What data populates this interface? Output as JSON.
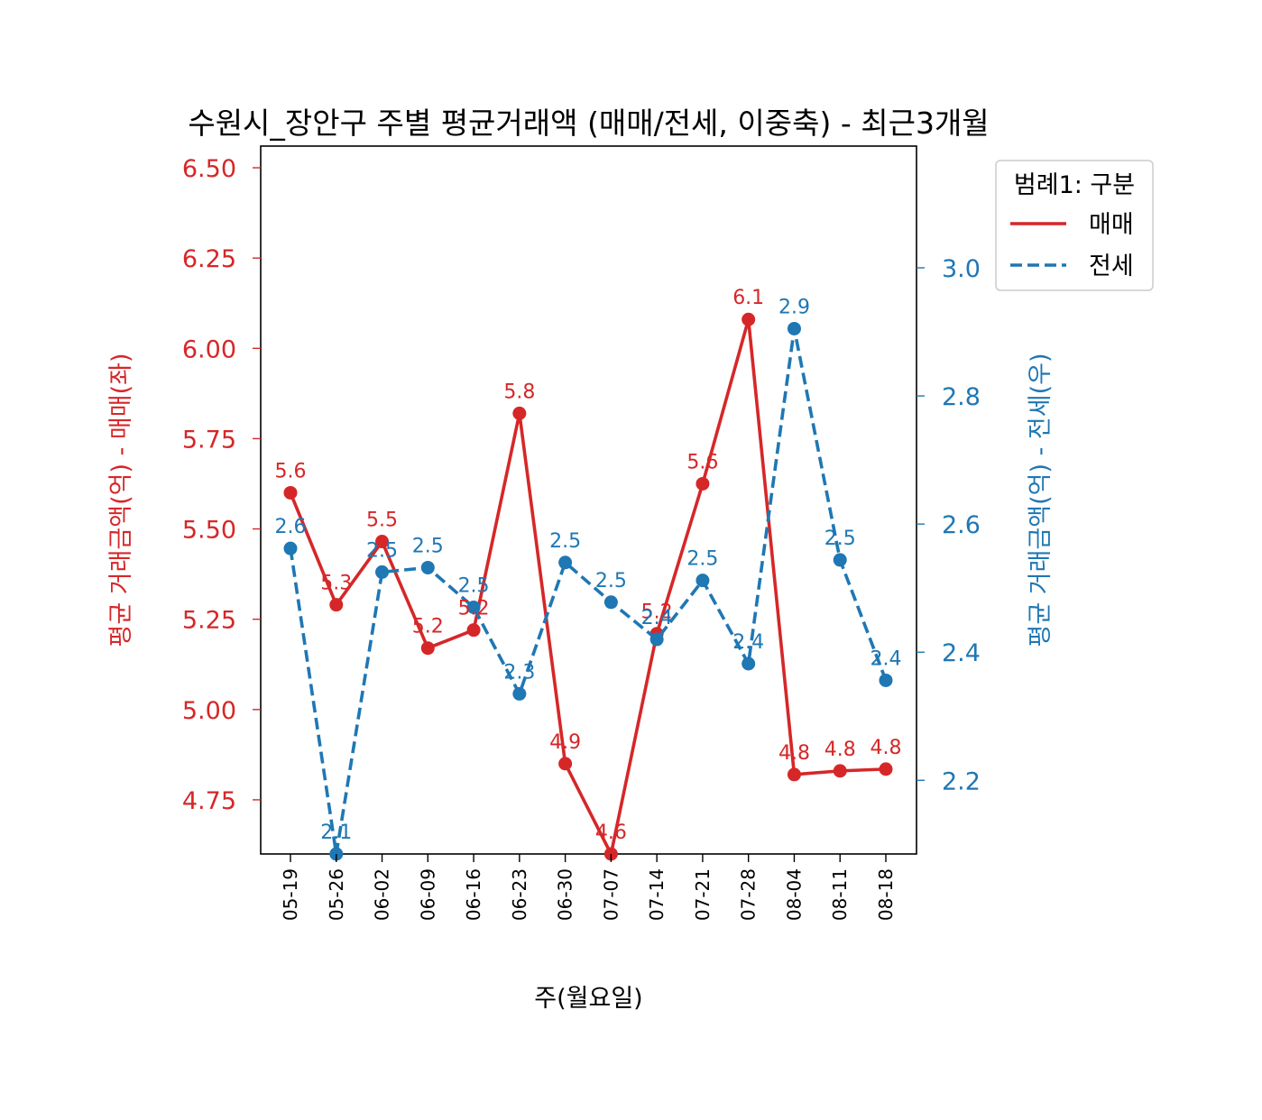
{
  "chart_data": {
    "type": "line",
    "title": "수원시_장안구 주별 평균거래액 (매매/전세, 이중축) - 최근3개월",
    "xlabel": "주(월요일)",
    "ylabel_left": "평균 거래금액(억) - 매매(좌)",
    "ylabel_right": "평균 거래금액(억) - 전세(우)",
    "categories": [
      "05-19",
      "05-26",
      "06-02",
      "06-09",
      "06-16",
      "06-23",
      "06-30",
      "07-07",
      "07-14",
      "07-21",
      "07-28",
      "08-04",
      "08-11",
      "08-18"
    ],
    "ylim_left": [
      4.6,
      6.56
    ],
    "yticks_left": [
      "4.75",
      "5.00",
      "5.25",
      "5.50",
      "5.75",
      "6.00",
      "6.25",
      "6.50"
    ],
    "ylim_right": [
      2.085,
      3.19
    ],
    "yticks_right": [
      "2.2",
      "2.4",
      "2.6",
      "2.8",
      "3.0"
    ],
    "grid": false,
    "legend": {
      "title": "범례1: 구분",
      "position": "outside-top-right",
      "entries": [
        "매매",
        "전세"
      ]
    },
    "series": [
      {
        "name": "매매",
        "axis": "left",
        "color": "#d62728",
        "linestyle": "solid",
        "values": [
          5.6,
          5.29,
          5.465,
          5.17,
          5.22,
          5.82,
          4.85,
          4.6,
          5.21,
          5.625,
          6.08,
          4.82,
          4.83,
          4.835
        ],
        "labels": [
          "5.6",
          "5.3",
          "5.5",
          "5.2",
          "5.2",
          "5.8",
          "4.9",
          "4.6",
          "5.2",
          "5.6",
          "6.1",
          "4.8",
          "4.8",
          "4.8"
        ]
      },
      {
        "name": "전세",
        "axis": "right",
        "color": "#1f77b4",
        "linestyle": "dashed",
        "values": [
          2.562,
          2.085,
          2.525,
          2.532,
          2.47,
          2.335,
          2.54,
          2.478,
          2.42,
          2.512,
          2.382,
          2.905,
          2.544,
          2.356
        ],
        "labels": [
          "2.6",
          "2.1",
          "2.5",
          "2.5",
          "2.5",
          "2.3",
          "2.5",
          "2.5",
          "2.4",
          "2.5",
          "2.4",
          "2.9",
          "2.5",
          "2.4"
        ]
      }
    ]
  }
}
